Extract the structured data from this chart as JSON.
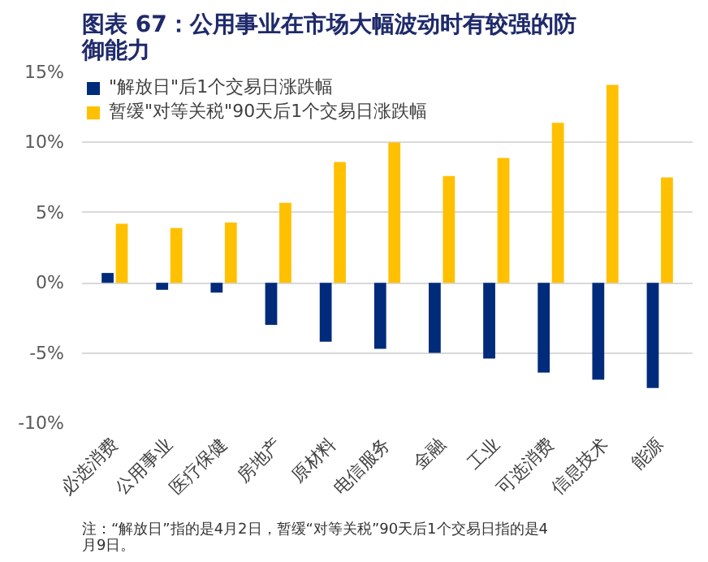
{
  "chart_data": {
    "type": "bar",
    "title": "图表 67：公用事业在市场大幅波动时有较强的防御能力",
    "categories": [
      "必选消费",
      "公用事业",
      "医疗保健",
      "房地产",
      "原材料",
      "电信服务",
      "金融",
      "工业",
      "可选消费",
      "信息技术",
      "能源"
    ],
    "series": [
      {
        "name": "\"解放日\"后1个交易日涨跌幅",
        "color": "#002b7a",
        "values": [
          0.7,
          -0.5,
          -0.7,
          -3.0,
          -4.2,
          -4.7,
          -5.0,
          -5.4,
          -6.4,
          -6.9,
          -7.5
        ]
      },
      {
        "name": "暂缓\"对等关税\"90天后1个交易日涨跌幅",
        "color": "#ffc000",
        "values": [
          4.2,
          3.9,
          4.3,
          5.7,
          8.6,
          10.0,
          7.6,
          8.9,
          11.4,
          14.1,
          7.5
        ]
      }
    ],
    "ylim": [
      -10,
      15
    ],
    "yticks": [
      {
        "value": -10,
        "label": "-10%"
      },
      {
        "value": -5,
        "label": "-5%"
      },
      {
        "value": 0,
        "label": "0%"
      },
      {
        "value": 5,
        "label": "5%"
      },
      {
        "value": 10,
        "label": "10%"
      },
      {
        "value": 15,
        "label": "15%"
      }
    ],
    "grid": "y",
    "legend": "top left",
    "annotations": [
      "注：“解放日”指的是4月2日，暂缓“对等关税”90天后1个交易日指的是4月9日。"
    ]
  }
}
